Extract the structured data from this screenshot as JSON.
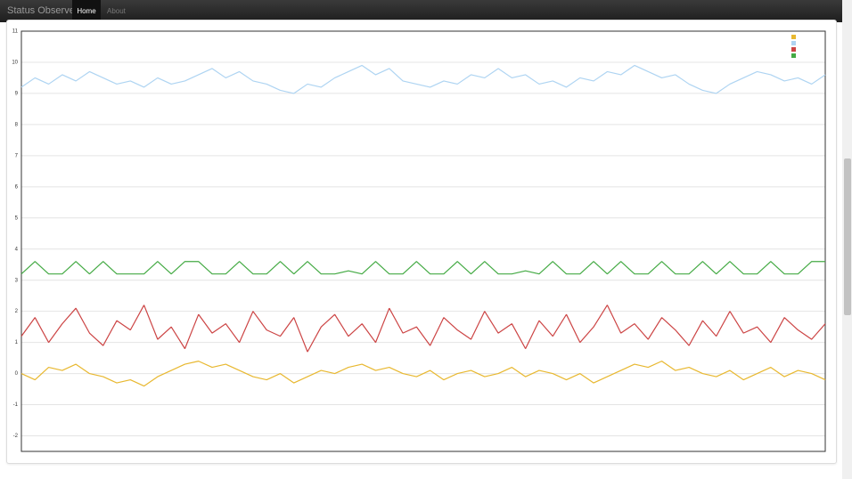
{
  "nav": {
    "brand": "Status Observer",
    "items": [
      "Home",
      "About"
    ]
  },
  "chart_data": {
    "type": "line",
    "ylim": [
      -2.5,
      11
    ],
    "yticks": [
      -2,
      -1,
      0,
      1,
      2,
      3,
      4,
      5,
      6,
      7,
      8,
      9,
      10,
      11
    ],
    "grid": true,
    "legend": "top-right",
    "series": [
      {
        "color": "#e8b830",
        "values": [
          0.0,
          -0.2,
          0.2,
          0.1,
          0.3,
          0.0,
          -0.1,
          -0.3,
          -0.2,
          -0.4,
          -0.1,
          0.1,
          0.3,
          0.4,
          0.2,
          0.3,
          0.1,
          -0.1,
          -0.2,
          0.0,
          -0.3,
          -0.1,
          0.1,
          0.0,
          0.2,
          0.3,
          0.1,
          0.2,
          0.0,
          -0.1,
          0.1,
          -0.2,
          0.0,
          0.1,
          -0.1,
          0.0,
          0.2,
          -0.1,
          0.1,
          0.0,
          -0.2,
          0.0,
          -0.3,
          -0.1,
          0.1,
          0.3,
          0.2,
          0.4,
          0.1,
          0.2,
          0.0,
          -0.1,
          0.1,
          -0.2,
          0.0,
          0.2,
          -0.1,
          0.1,
          0.0,
          -0.2
        ]
      },
      {
        "color": "#aed4f2",
        "values": [
          9.2,
          9.5,
          9.3,
          9.6,
          9.4,
          9.7,
          9.5,
          9.3,
          9.4,
          9.2,
          9.5,
          9.3,
          9.4,
          9.6,
          9.8,
          9.5,
          9.7,
          9.4,
          9.3,
          9.1,
          9.0,
          9.3,
          9.2,
          9.5,
          9.7,
          9.9,
          9.6,
          9.8,
          9.4,
          9.3,
          9.2,
          9.4,
          9.3,
          9.6,
          9.5,
          9.8,
          9.5,
          9.6,
          9.3,
          9.4,
          9.2,
          9.5,
          9.4,
          9.7,
          9.6,
          9.9,
          9.7,
          9.5,
          9.6,
          9.3,
          9.1,
          9.0,
          9.3,
          9.5,
          9.7,
          9.6,
          9.4,
          9.5,
          9.3,
          9.6
        ]
      },
      {
        "color": "#cc4444",
        "values": [
          1.2,
          1.8,
          1.0,
          1.6,
          2.1,
          1.3,
          0.9,
          1.7,
          1.4,
          2.2,
          1.1,
          1.5,
          0.8,
          1.9,
          1.3,
          1.6,
          1.0,
          2.0,
          1.4,
          1.2,
          1.8,
          0.7,
          1.5,
          1.9,
          1.2,
          1.6,
          1.0,
          2.1,
          1.3,
          1.5,
          0.9,
          1.8,
          1.4,
          1.1,
          2.0,
          1.3,
          1.6,
          0.8,
          1.7,
          1.2,
          1.9,
          1.0,
          1.5,
          2.2,
          1.3,
          1.6,
          1.1,
          1.8,
          1.4,
          0.9,
          1.7,
          1.2,
          2.0,
          1.3,
          1.5,
          1.0,
          1.8,
          1.4,
          1.1,
          1.6
        ]
      },
      {
        "color": "#44aa44",
        "values": [
          3.2,
          3.6,
          3.2,
          3.2,
          3.6,
          3.2,
          3.6,
          3.2,
          3.2,
          3.2,
          3.6,
          3.2,
          3.6,
          3.6,
          3.2,
          3.2,
          3.6,
          3.2,
          3.2,
          3.6,
          3.2,
          3.6,
          3.2,
          3.2,
          3.3,
          3.2,
          3.6,
          3.2,
          3.2,
          3.6,
          3.2,
          3.2,
          3.6,
          3.2,
          3.6,
          3.2,
          3.2,
          3.3,
          3.2,
          3.6,
          3.2,
          3.2,
          3.6,
          3.2,
          3.6,
          3.2,
          3.2,
          3.6,
          3.2,
          3.2,
          3.6,
          3.2,
          3.6,
          3.2,
          3.2,
          3.6,
          3.2,
          3.2,
          3.6,
          3.6
        ]
      }
    ]
  }
}
